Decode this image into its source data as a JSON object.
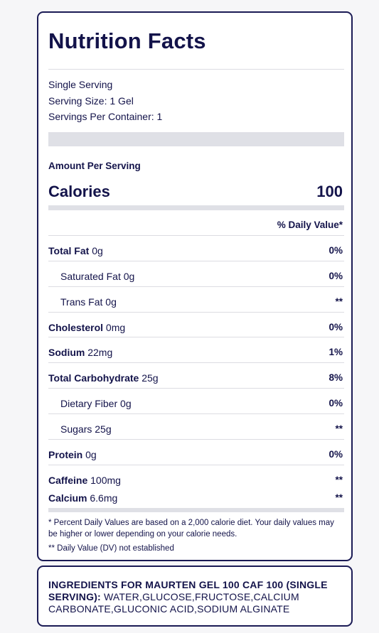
{
  "label": {
    "title": "Nutrition Facts",
    "serving_type": "Single Serving",
    "serving_size": "Serving Size: 1 Gel",
    "servings_per_container": "Servings Per Container: 1",
    "amount_per_serving": "Amount Per Serving",
    "calories_label": "Calories",
    "calories_value": "100",
    "daily_value_header": "% Daily Value*"
  },
  "nutrients": [
    {
      "name": "Total Fat",
      "amount": "0g",
      "dv": "0%"
    },
    {
      "name": "Saturated Fat",
      "amount": "0g",
      "dv": "0%"
    },
    {
      "name": "Trans Fat",
      "amount": "0g",
      "dv": "**"
    },
    {
      "name": "Cholesterol",
      "amount": "0mg",
      "dv": "0%"
    },
    {
      "name": "Sodium",
      "amount": "22mg",
      "dv": "1%"
    },
    {
      "name": "Total Carbohydrate",
      "amount": "25g",
      "dv": "8%"
    },
    {
      "name": "Dietary Fiber",
      "amount": "0g",
      "dv": "0%"
    },
    {
      "name": "Sugars",
      "amount": "25g",
      "dv": "**"
    },
    {
      "name": "Protein",
      "amount": "0g",
      "dv": "0%"
    },
    {
      "name": "Caffeine",
      "amount": "100mg",
      "dv": "**"
    },
    {
      "name": "Calcium",
      "amount": "6.6mg",
      "dv": "**"
    }
  ],
  "footnotes": {
    "percent_dv": "* Percent Daily Values are based on a 2,000 calorie diet. Your daily values may be higher or lower depending on your calorie needs.",
    "not_established": "** Daily Value (DV) not established"
  },
  "ingredients": {
    "heading": "INGREDIENTS FOR MAURTEN GEL 100 CAF 100 (SINGLE SERVING):",
    "list": " WATER,GLUCOSE,FRUCTOSE,CALCIUM CARBONATE,GLUCONIC ACID,SODIUM ALGINATE"
  },
  "colors": {
    "text": "#13134a",
    "border": "#1b1b55",
    "band": "#dfe0e6",
    "rule": "#dcdce2",
    "background": "#f6f6f8"
  }
}
